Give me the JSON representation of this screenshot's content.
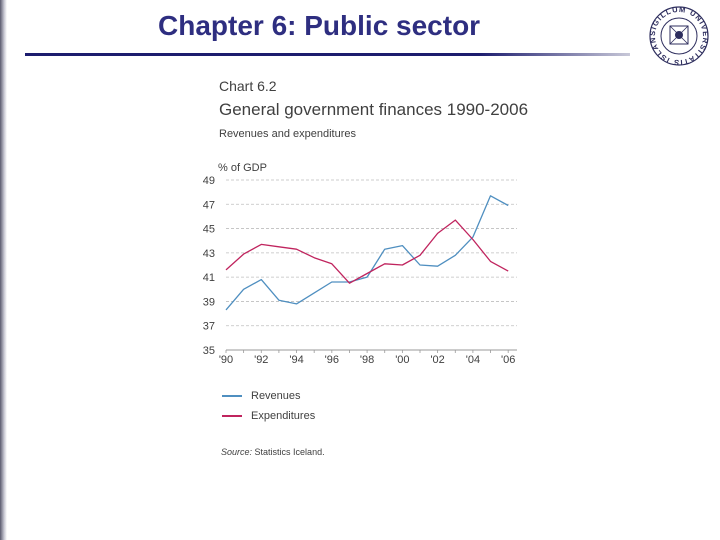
{
  "slide": {
    "title": "Chapter 6: Public sector",
    "logo": {
      "name": "university-seal",
      "text": "SIGILLUM UNIVERSITATIS ISLANDIAE"
    }
  },
  "chart_data": {
    "type": "line",
    "kicker": "Chart 6.2",
    "title": "General government finances 1990-2006",
    "subtitle": "Revenues and expenditures",
    "ylabel": "% of GDP",
    "xlabel": "",
    "ylim": [
      35,
      49
    ],
    "xlim": [
      1990,
      2006.5
    ],
    "yticks": [
      49,
      47,
      45,
      43,
      41,
      39,
      37,
      35
    ],
    "xticks": [
      {
        "value": 1990,
        "label": "'90"
      },
      {
        "value": 1992,
        "label": "'92"
      },
      {
        "value": 1994,
        "label": "'94"
      },
      {
        "value": 1996,
        "label": "'96"
      },
      {
        "value": 1998,
        "label": "'98"
      },
      {
        "value": 2000,
        "label": "'00"
      },
      {
        "value": 2002,
        "label": "'02"
      },
      {
        "value": 2004,
        "label": "'04"
      },
      {
        "value": 2006,
        "label": "'06"
      }
    ],
    "grid": true,
    "x": [
      1990,
      1991,
      1992,
      1993,
      1994,
      1995,
      1996,
      1997,
      1998,
      1999,
      2000,
      2001,
      2002,
      2003,
      2004,
      2005,
      2006
    ],
    "series": [
      {
        "name": "Revenues",
        "color": "#4f8fc0",
        "values": [
          38.3,
          40.0,
          40.8,
          39.1,
          38.8,
          39.7,
          40.6,
          40.6,
          41.0,
          43.3,
          43.6,
          42.0,
          41.9,
          42.8,
          44.3,
          47.7,
          46.9
        ]
      },
      {
        "name": "Expenditures",
        "color": "#c0245e",
        "values": [
          41.6,
          42.9,
          43.7,
          43.5,
          43.3,
          42.6,
          42.1,
          40.5,
          41.3,
          42.1,
          42.0,
          42.8,
          44.6,
          45.7,
          44.1,
          42.3,
          41.5
        ]
      }
    ],
    "legend": [
      "Revenues",
      "Expenditures"
    ],
    "legend_position": "bottom-left",
    "source_label": "Source:",
    "source_text": "Statistics Iceland."
  }
}
